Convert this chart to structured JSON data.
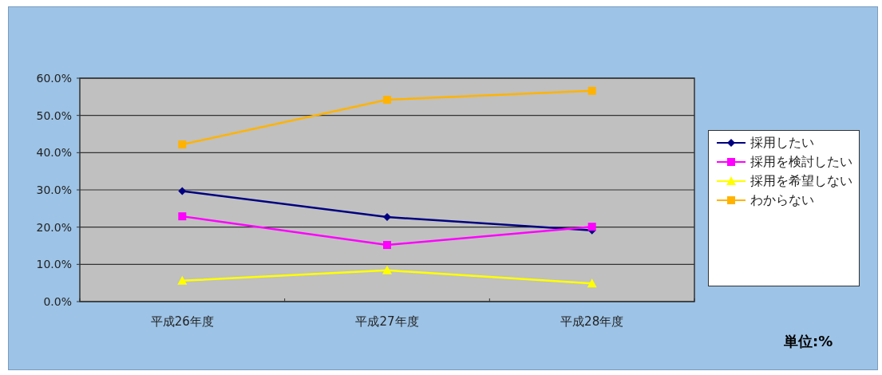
{
  "chart_data": {
    "type": "line",
    "categories": [
      "平成26年度",
      "平成27年度",
      "平成28年度"
    ],
    "series": [
      {
        "name": "採用したい",
        "color": "#000080",
        "marker": "diamond",
        "values": [
          29.7,
          22.7,
          19.1
        ]
      },
      {
        "name": "採用を検討したい",
        "color": "#ff00ff",
        "marker": "square",
        "values": [
          22.9,
          15.2,
          20.1
        ]
      },
      {
        "name": "採用を希望しない",
        "color": "#ffff00",
        "marker": "triangle",
        "values": [
          5.6,
          8.4,
          4.9
        ]
      },
      {
        "name": "わからない",
        "color": "#ffb300",
        "marker": "square",
        "values": [
          42.2,
          54.2,
          56.6
        ]
      }
    ],
    "ylim": [
      0,
      60
    ],
    "yticks": [
      {
        "value": 0,
        "label": "0.0%"
      },
      {
        "value": 10,
        "label": "10.0%"
      },
      {
        "value": 20,
        "label": "20.0%"
      },
      {
        "value": 30,
        "label": "30.0%"
      },
      {
        "value": 40,
        "label": "40.0%"
      },
      {
        "value": 50,
        "label": "50.0%"
      },
      {
        "value": 60,
        "label": "60.0%"
      }
    ],
    "grid": "y",
    "legend": "right",
    "annotations": [
      "単位:%"
    ]
  }
}
